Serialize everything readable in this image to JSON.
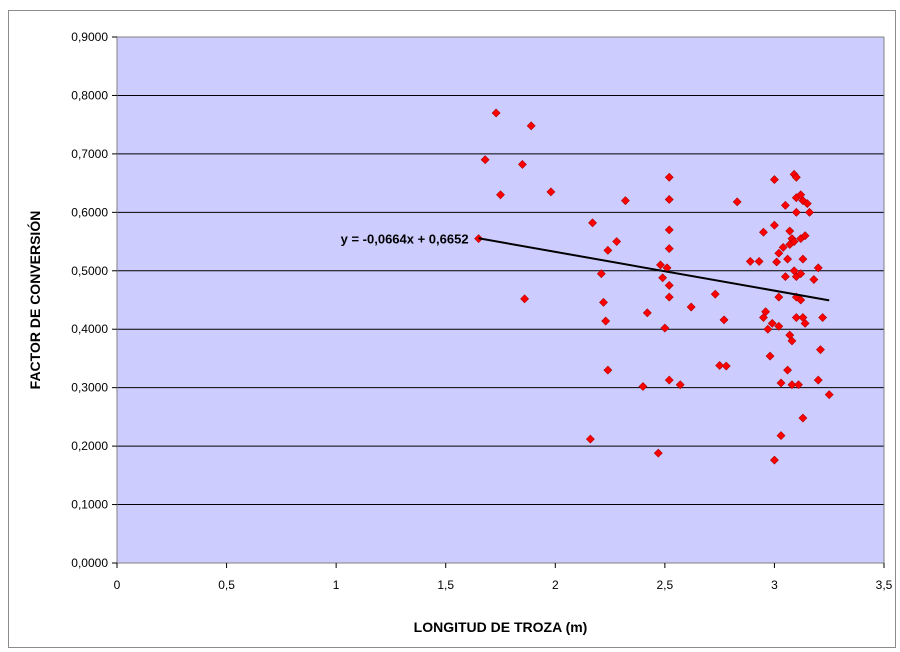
{
  "chart_data": {
    "type": "scatter",
    "xlabel": "LONGITUD DE TROZA (m)",
    "ylabel": "FACTOR DE CONVERSIÓN",
    "xlim": [
      0,
      3.5
    ],
    "ylim": [
      0,
      0.9
    ],
    "x_ticks": [
      "0",
      "0,5",
      "1",
      "1,5",
      "2",
      "2,5",
      "3",
      "3,5"
    ],
    "x_tick_values": [
      0,
      0.5,
      1,
      1.5,
      2,
      2.5,
      3,
      3.5
    ],
    "y_ticks": [
      "0,0000",
      "0,1000",
      "0,2000",
      "0,3000",
      "0,4000",
      "0,5000",
      "0,6000",
      "0,7000",
      "0,8000",
      "0,9000"
    ],
    "y_tick_values": [
      0,
      0.1,
      0.2,
      0.3,
      0.4,
      0.5,
      0.6,
      0.7,
      0.8,
      0.9
    ],
    "grid": "horizontal",
    "plot_background": "#ccccff",
    "marker_color": "#ff0000",
    "trendline": {
      "equation": "y = -0,0664x + 0,6652",
      "slope": -0.0664,
      "intercept": 0.6652,
      "x_range": [
        1.65,
        3.25
      ],
      "color": "#000000"
    },
    "series": [
      {
        "points": [
          [
            1.65,
            0.555
          ],
          [
            1.68,
            0.69
          ],
          [
            1.73,
            0.77
          ],
          [
            1.75,
            0.63
          ],
          [
            1.85,
            0.682
          ],
          [
            1.86,
            0.452
          ],
          [
            1.89,
            0.748
          ],
          [
            1.98,
            0.635
          ],
          [
            2.16,
            0.212
          ],
          [
            2.17,
            0.582
          ],
          [
            2.21,
            0.495
          ],
          [
            2.22,
            0.446
          ],
          [
            2.23,
            0.414
          ],
          [
            2.24,
            0.33
          ],
          [
            2.24,
            0.535
          ],
          [
            2.28,
            0.55
          ],
          [
            2.32,
            0.62
          ],
          [
            2.4,
            0.302
          ],
          [
            2.42,
            0.428
          ],
          [
            2.47,
            0.188
          ],
          [
            2.48,
            0.51
          ],
          [
            2.49,
            0.488
          ],
          [
            2.5,
            0.402
          ],
          [
            2.51,
            0.505
          ],
          [
            2.52,
            0.66
          ],
          [
            2.52,
            0.622
          ],
          [
            2.52,
            0.57
          ],
          [
            2.52,
            0.538
          ],
          [
            2.52,
            0.475
          ],
          [
            2.52,
            0.455
          ],
          [
            2.52,
            0.313
          ],
          [
            2.57,
            0.305
          ],
          [
            2.62,
            0.438
          ],
          [
            2.73,
            0.46
          ],
          [
            2.75,
            0.338
          ],
          [
            2.77,
            0.416
          ],
          [
            2.78,
            0.337
          ],
          [
            2.83,
            0.618
          ],
          [
            2.89,
            0.516
          ],
          [
            2.93,
            0.516
          ],
          [
            2.95,
            0.42
          ],
          [
            2.95,
            0.566
          ],
          [
            2.96,
            0.43
          ],
          [
            2.97,
            0.4
          ],
          [
            2.98,
            0.354
          ],
          [
            2.99,
            0.41
          ],
          [
            3.0,
            0.656
          ],
          [
            3.0,
            0.578
          ],
          [
            3.0,
            0.176
          ],
          [
            3.01,
            0.515
          ],
          [
            3.02,
            0.53
          ],
          [
            3.02,
            0.455
          ],
          [
            3.02,
            0.405
          ],
          [
            3.03,
            0.308
          ],
          [
            3.03,
            0.218
          ],
          [
            3.04,
            0.54
          ],
          [
            3.05,
            0.612
          ],
          [
            3.05,
            0.49
          ],
          [
            3.06,
            0.52
          ],
          [
            3.06,
            0.33
          ],
          [
            3.07,
            0.568
          ],
          [
            3.07,
            0.545
          ],
          [
            3.07,
            0.39
          ],
          [
            3.08,
            0.555
          ],
          [
            3.08,
            0.38
          ],
          [
            3.08,
            0.305
          ],
          [
            3.09,
            0.665
          ],
          [
            3.09,
            0.55
          ],
          [
            3.09,
            0.5
          ],
          [
            3.1,
            0.66
          ],
          [
            3.1,
            0.625
          ],
          [
            3.1,
            0.6
          ],
          [
            3.1,
            0.49
          ],
          [
            3.1,
            0.455
          ],
          [
            3.1,
            0.42
          ],
          [
            3.11,
            0.305
          ],
          [
            3.12,
            0.63
          ],
          [
            3.12,
            0.555
          ],
          [
            3.12,
            0.495
          ],
          [
            3.12,
            0.45
          ],
          [
            3.13,
            0.62
          ],
          [
            3.13,
            0.52
          ],
          [
            3.13,
            0.42
          ],
          [
            3.13,
            0.248
          ],
          [
            3.14,
            0.56
          ],
          [
            3.14,
            0.41
          ],
          [
            3.15,
            0.615
          ],
          [
            3.16,
            0.6
          ],
          [
            3.18,
            0.485
          ],
          [
            3.2,
            0.505
          ],
          [
            3.2,
            0.313
          ],
          [
            3.21,
            0.365
          ],
          [
            3.22,
            0.42
          ],
          [
            3.25,
            0.288
          ]
        ]
      }
    ]
  }
}
